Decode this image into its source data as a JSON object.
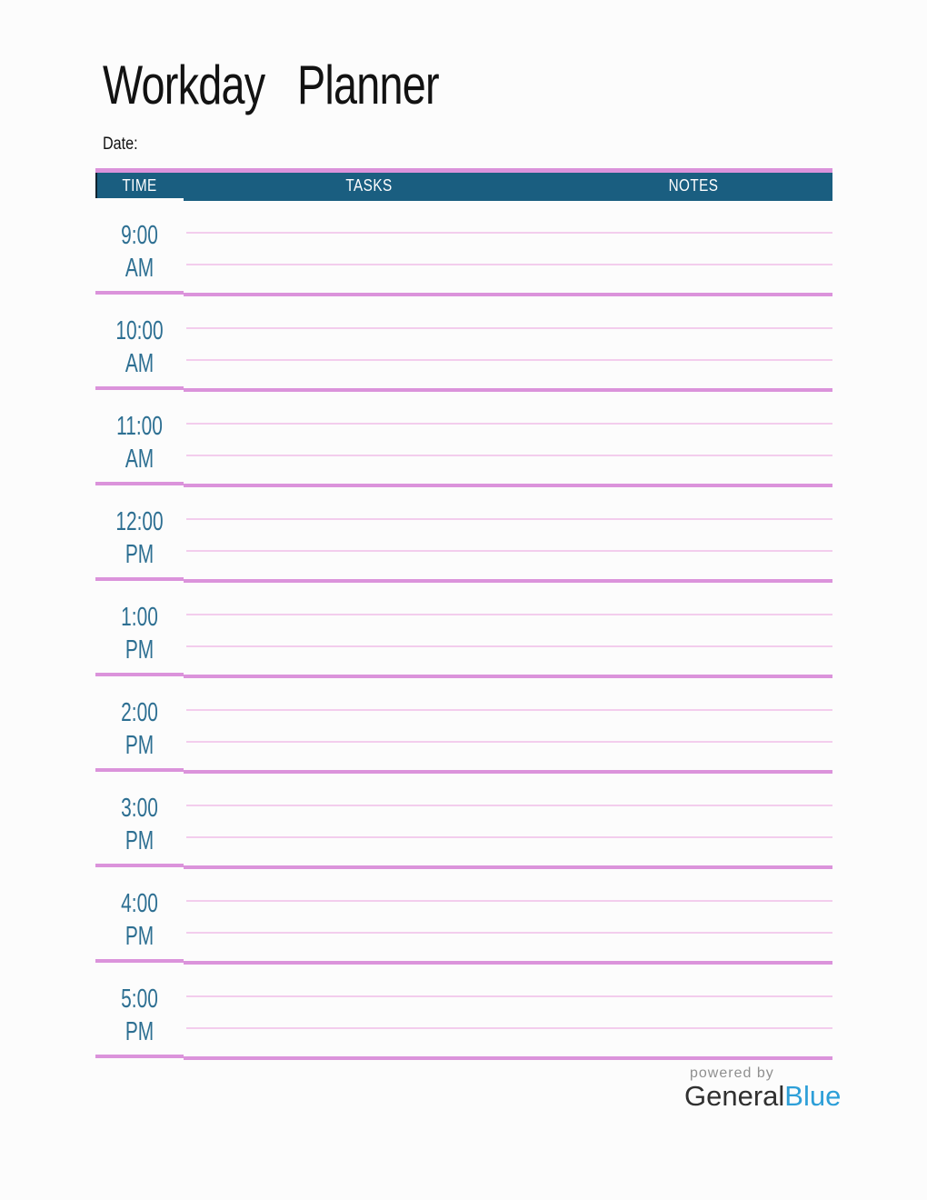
{
  "page": {
    "title": "Workday Planner",
    "date_label": "Date:"
  },
  "table": {
    "headers": {
      "time": "TIME",
      "tasks": "TASKS",
      "notes": "NOTES"
    },
    "rows": [
      {
        "time": "9:00",
        "period": "AM"
      },
      {
        "time": "10:00",
        "period": "AM"
      },
      {
        "time": "11:00",
        "period": "AM"
      },
      {
        "time": "12:00",
        "period": "PM"
      },
      {
        "time": "1:00",
        "period": "PM"
      },
      {
        "time": "2:00",
        "period": "PM"
      },
      {
        "time": "3:00",
        "period": "PM"
      },
      {
        "time": "4:00",
        "period": "PM"
      },
      {
        "time": "5:00",
        "period": "PM"
      }
    ]
  },
  "footer": {
    "powered_by": "powered by",
    "brand_first": "General",
    "brand_second": "Blue"
  },
  "colors": {
    "accent-pink": "#DB93DB",
    "line-pink": "#F3CDED",
    "header-teal": "#1A5E80",
    "time-teal": "#2D6F92",
    "brand-blue": "#2D9FD8",
    "brand-dark": "#303030",
    "muted-gray": "#8F8F8F"
  }
}
